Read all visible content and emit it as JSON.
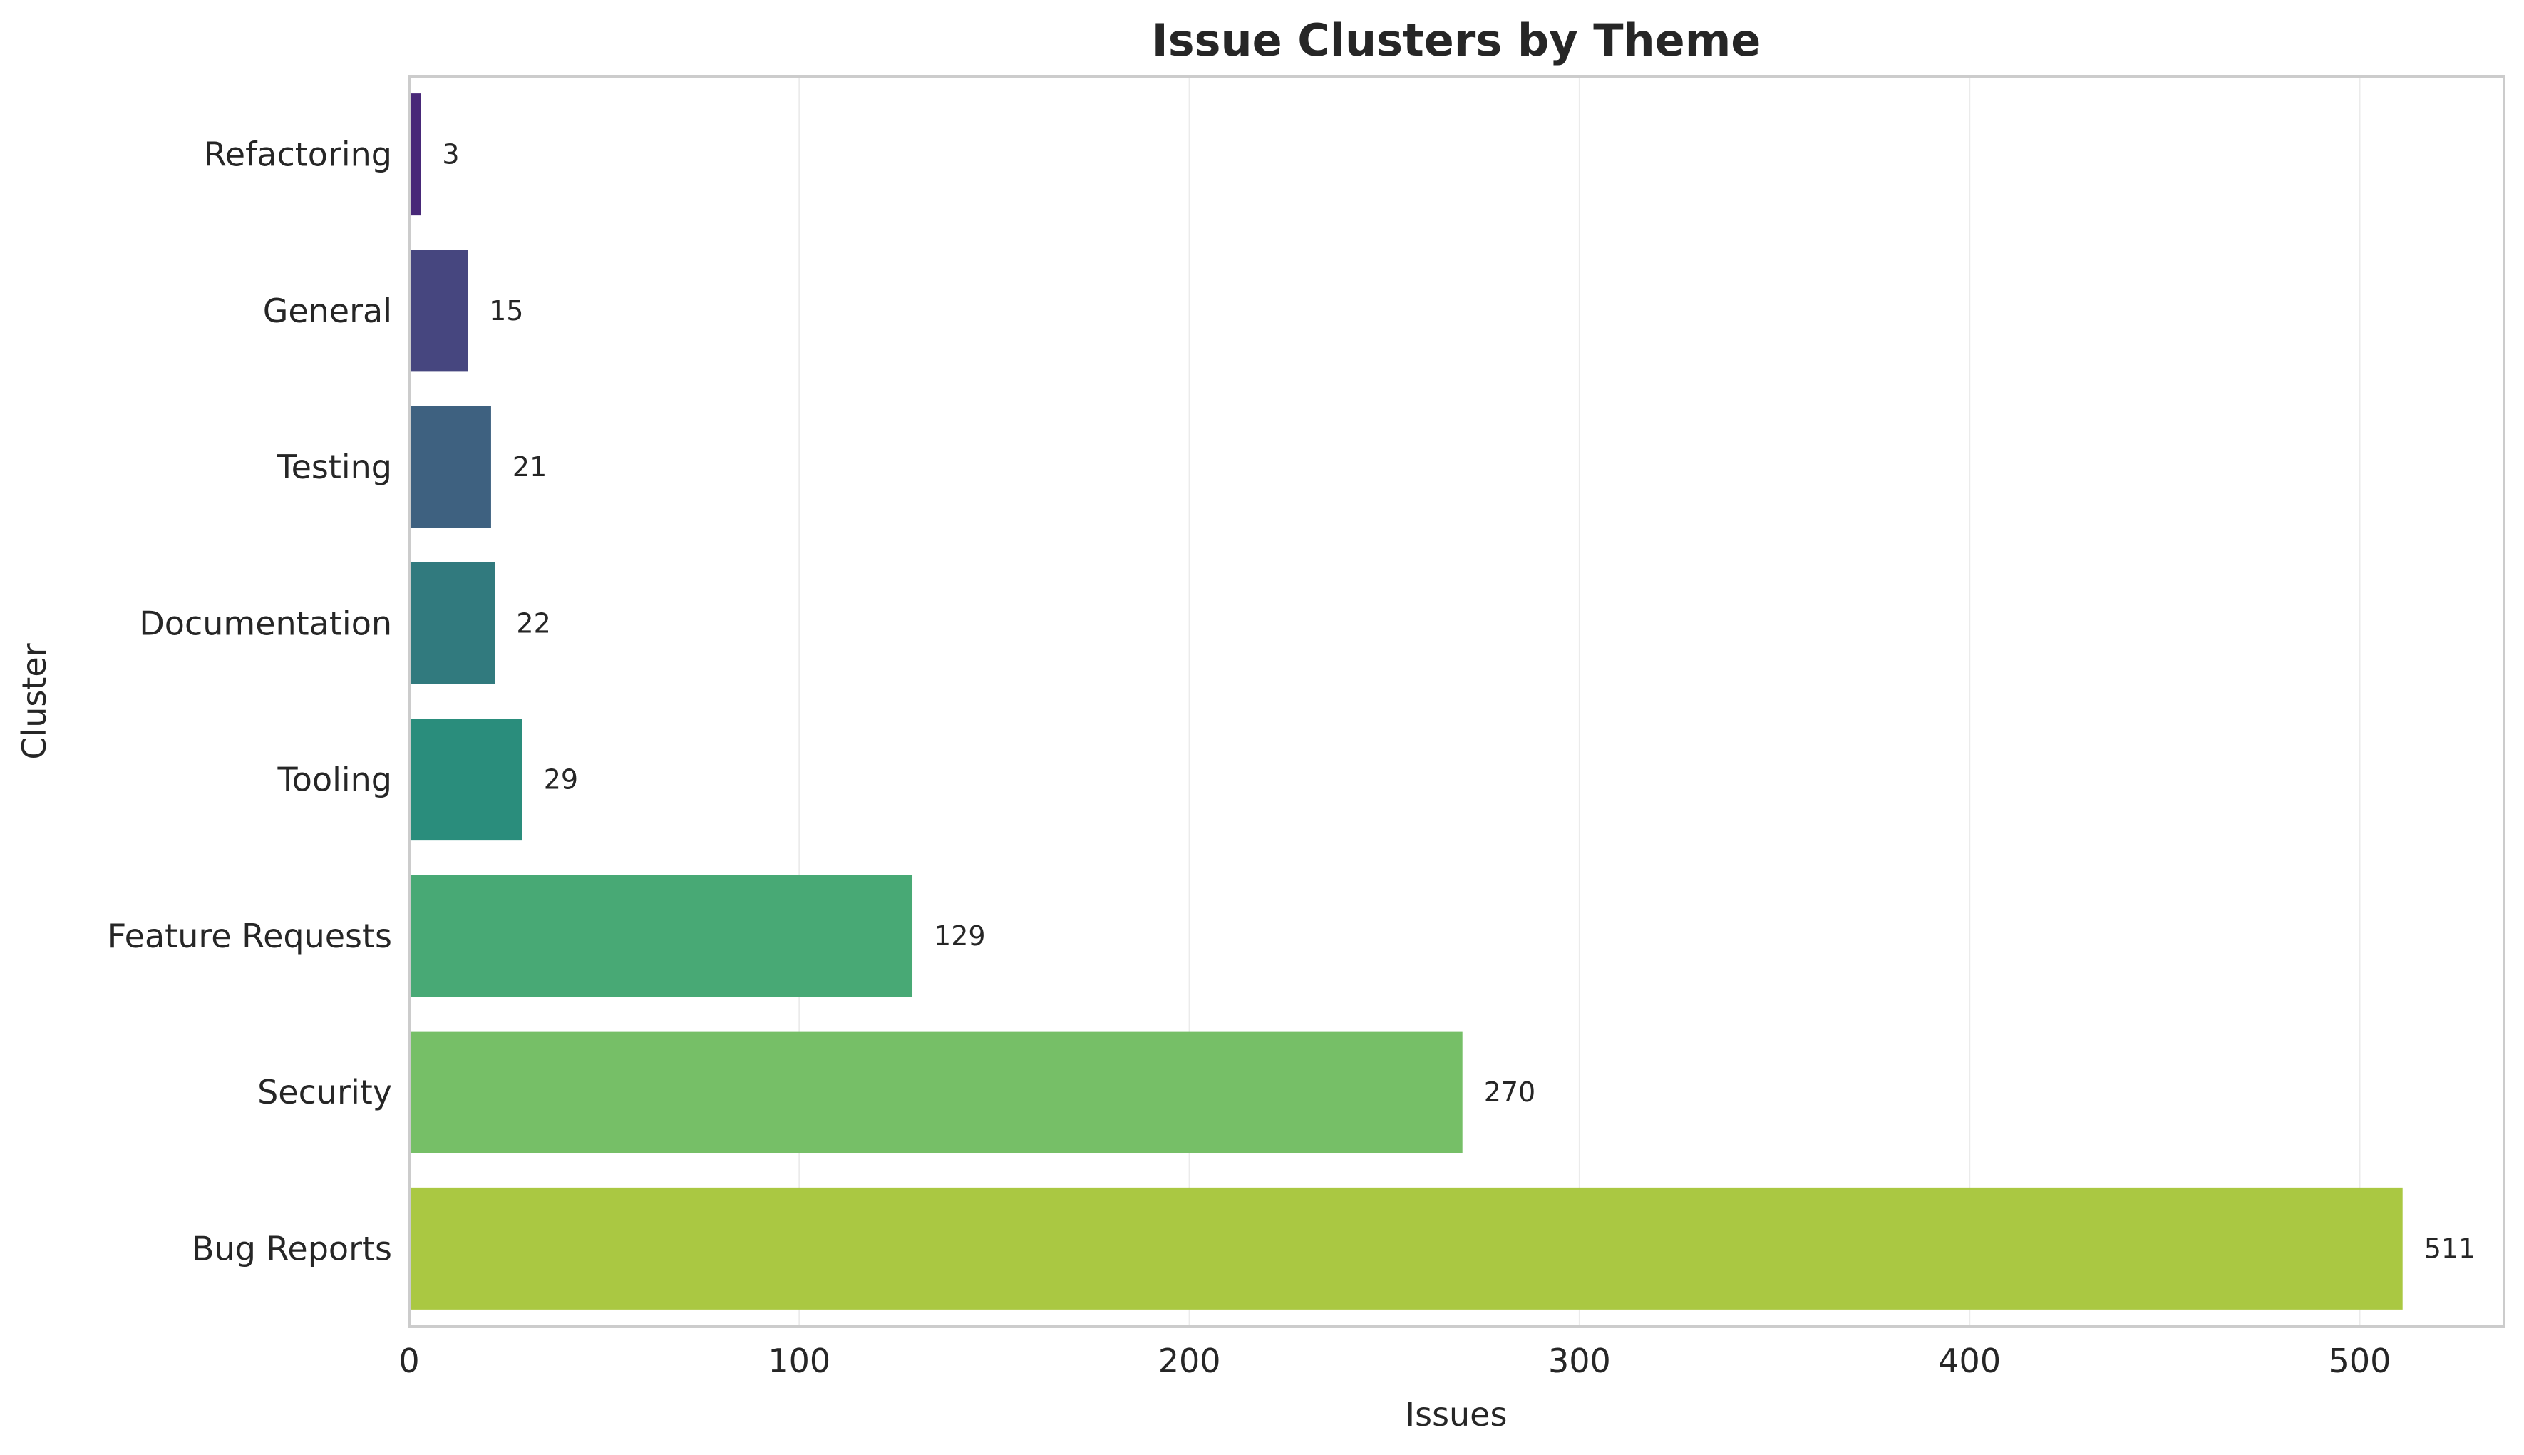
{
  "chart_data": {
    "type": "bar",
    "orientation": "horizontal",
    "title": "Issue Clusters by Theme",
    "xlabel": "Issues",
    "ylabel": "Cluster",
    "categories": [
      "Refactoring",
      "General",
      "Testing",
      "Documentation",
      "Tooling",
      "Feature Requests",
      "Security",
      "Bug Reports"
    ],
    "values": [
      3,
      15,
      21,
      22,
      29,
      129,
      270,
      511
    ],
    "data_labels": [
      "3",
      "15",
      "21",
      "22",
      "29",
      "129",
      "270",
      "511"
    ],
    "colors": [
      "#482878",
      "#46467f",
      "#3e6180",
      "#317a7e",
      "#2a8d7c",
      "#48a975",
      "#76bf67",
      "#aac842"
    ],
    "xlim": [
      0,
      537
    ],
    "xticks": [
      0,
      100,
      200,
      300,
      400,
      500
    ],
    "xtick_labels": [
      "0",
      "100",
      "200",
      "300",
      "400",
      "500"
    ],
    "grid": "vertical",
    "legend": "none"
  }
}
